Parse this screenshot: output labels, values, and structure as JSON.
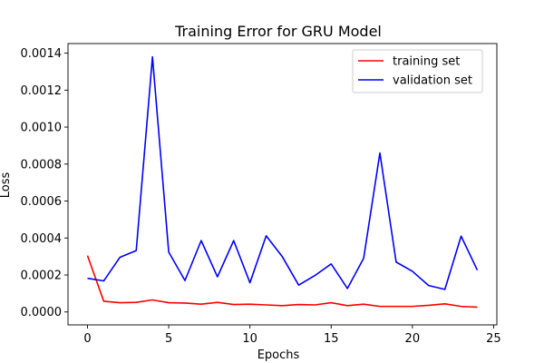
{
  "chart_data": {
    "type": "line",
    "title": "Training Error for GRU Model",
    "xlabel": "Epochs",
    "ylabel": "Loss",
    "xlim": [
      -1.2,
      25.2
    ],
    "ylim": [
      -7e-05,
      0.001452
    ],
    "xticks": [
      0,
      5,
      10,
      15,
      20,
      25
    ],
    "xtick_labels": [
      "0",
      "5",
      "10",
      "15",
      "20",
      "25"
    ],
    "yticks": [
      0.0,
      0.0002,
      0.0004,
      0.0006,
      0.0008,
      0.001,
      0.0012,
      0.0014
    ],
    "ytick_labels": [
      "0.0000",
      "0.0002",
      "0.0004",
      "0.0006",
      "0.0008",
      "0.0010",
      "0.0012",
      "0.0014"
    ],
    "grid": false,
    "legend_position": "top-right",
    "x": [
      0,
      1,
      2,
      3,
      4,
      5,
      6,
      7,
      8,
      9,
      10,
      11,
      12,
      13,
      14,
      15,
      16,
      17,
      18,
      19,
      20,
      21,
      22,
      23,
      24
    ],
    "series": [
      {
        "name": "training set",
        "color": "#ff0000",
        "values": [
          0.000305,
          5.8e-05,
          5e-05,
          5.2e-05,
          6.5e-05,
          5e-05,
          4.8e-05,
          4.2e-05,
          5.2e-05,
          4e-05,
          4.2e-05,
          3.8e-05,
          3.4e-05,
          4e-05,
          3.8e-05,
          5e-05,
          3.4e-05,
          4.2e-05,
          3e-05,
          3e-05,
          3e-05,
          3.6e-05,
          4.4e-05,
          3e-05,
          2.6e-05
        ]
      },
      {
        "name": "validation set",
        "color": "#0000ff",
        "values": [
          0.000182,
          0.000168,
          0.000296,
          0.000332,
          0.00138,
          0.000324,
          0.00017,
          0.000386,
          0.00019,
          0.000386,
          0.000158,
          0.000412,
          0.000298,
          0.000145,
          0.000197,
          0.00026,
          0.000127,
          0.00029,
          0.00086,
          0.00027,
          0.00022,
          0.000143,
          0.000122,
          0.00041,
          0.000226
        ]
      }
    ]
  }
}
